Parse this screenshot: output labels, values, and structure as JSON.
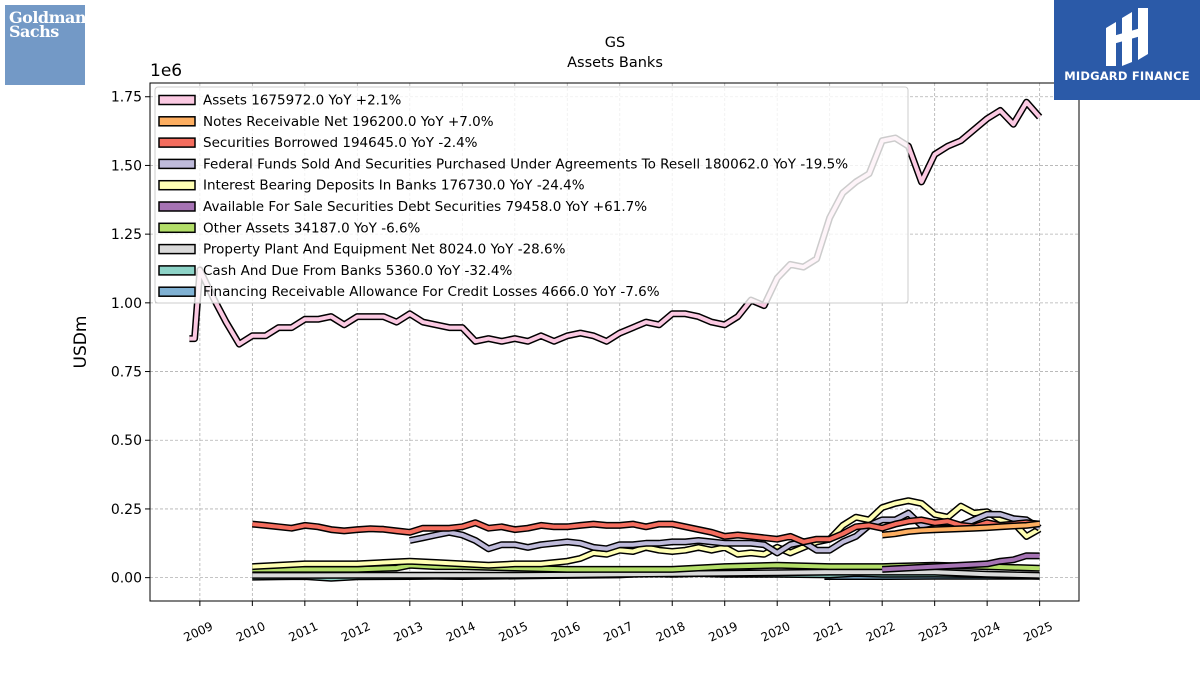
{
  "logos": {
    "left_top": "Goldman",
    "left_bottom": "Sachs",
    "right": "MIDGARD FINANCE"
  },
  "chart_data": {
    "type": "line",
    "title": "GS",
    "subtitle": "Assets Banks",
    "ylabel": "USDm",
    "xlabel": "",
    "y_offset_label": "1e6",
    "ylim": [
      -0.085,
      1.8
    ],
    "xlim": [
      2008.05,
      2025.75
    ],
    "yticks": [
      0.0,
      0.25,
      0.5,
      0.75,
      1.0,
      1.25,
      1.5,
      1.75
    ],
    "ytick_labels": [
      "0.00",
      "0.25",
      "0.50",
      "0.75",
      "1.00",
      "1.25",
      "1.50",
      "1.75"
    ],
    "xticks": [
      2009,
      2010,
      2011,
      2012,
      2013,
      2014,
      2015,
      2016,
      2017,
      2018,
      2019,
      2020,
      2021,
      2022,
      2023,
      2024,
      2025
    ],
    "xtick_labels": [
      "2009",
      "2010",
      "2011",
      "2012",
      "2013",
      "2014",
      "2015",
      "2016",
      "2017",
      "2018",
      "2019",
      "2020",
      "2021",
      "2022",
      "2023",
      "2024",
      "2025"
    ],
    "grid": true,
    "legend_position": "top-left",
    "series": [
      {
        "name": "Assets",
        "legend_label": "Assets  1675972.0 YoY +2.1%",
        "color": "#fbc9e2",
        "x": [
          2008.8,
          2008.9,
          2009.0,
          2009.25,
          2009.5,
          2009.75,
          2010.0,
          2010.25,
          2010.5,
          2010.75,
          2011.0,
          2011.25,
          2011.5,
          2011.75,
          2012.0,
          2012.25,
          2012.5,
          2012.75,
          2013.0,
          2013.25,
          2013.5,
          2013.75,
          2014.0,
          2014.25,
          2014.5,
          2014.75,
          2015.0,
          2015.25,
          2015.5,
          2015.75,
          2016.0,
          2016.25,
          2016.5,
          2016.75,
          2017.0,
          2017.25,
          2017.5,
          2017.75,
          2018.0,
          2018.25,
          2018.5,
          2018.75,
          2019.0,
          2019.25,
          2019.5,
          2019.75,
          2020.0,
          2020.25,
          2020.5,
          2020.75,
          2021.0,
          2021.25,
          2021.5,
          2021.75,
          2022.0,
          2022.25,
          2022.5,
          2022.75,
          2023.0,
          2023.25,
          2023.5,
          2023.75,
          2024.0,
          2024.25,
          2024.5,
          2024.75,
          2025.0
        ],
        "values": [
          0.87,
          0.87,
          1.12,
          1.02,
          0.93,
          0.85,
          0.88,
          0.88,
          0.91,
          0.91,
          0.94,
          0.94,
          0.95,
          0.92,
          0.95,
          0.95,
          0.95,
          0.93,
          0.96,
          0.93,
          0.92,
          0.91,
          0.91,
          0.86,
          0.87,
          0.86,
          0.87,
          0.86,
          0.88,
          0.86,
          0.88,
          0.89,
          0.88,
          0.86,
          0.89,
          0.91,
          0.93,
          0.92,
          0.96,
          0.96,
          0.95,
          0.93,
          0.92,
          0.95,
          1.01,
          0.99,
          1.09,
          1.14,
          1.13,
          1.16,
          1.31,
          1.4,
          1.44,
          1.47,
          1.59,
          1.6,
          1.57,
          1.44,
          1.54,
          1.57,
          1.59,
          1.63,
          1.67,
          1.7,
          1.65,
          1.73,
          1.676
        ]
      },
      {
        "name": "Notes Receivable Net",
        "legend_label": "Notes Receivable Net  196200.0 YoY +7.0%",
        "color": "#fdae61",
        "x": [
          2022.0,
          2022.25,
          2022.5,
          2022.75,
          2023.0,
          2023.25,
          2023.5,
          2023.75,
          2024.0,
          2024.25,
          2024.5,
          2024.75,
          2025.0
        ],
        "values": [
          0.155,
          0.16,
          0.168,
          0.172,
          0.174,
          0.176,
          0.178,
          0.18,
          0.182,
          0.185,
          0.188,
          0.19,
          0.196
        ]
      },
      {
        "name": "Securities Borrowed",
        "legend_label": "Securities Borrowed  194645.0 YoY -2.4%",
        "color": "#f46d5e",
        "x": [
          2010.0,
          2010.25,
          2010.5,
          2010.75,
          2011.0,
          2011.25,
          2011.5,
          2011.75,
          2012.0,
          2012.25,
          2012.5,
          2012.75,
          2013.0,
          2013.25,
          2013.5,
          2013.75,
          2014.0,
          2014.25,
          2014.5,
          2014.75,
          2015.0,
          2015.25,
          2015.5,
          2015.75,
          2016.0,
          2016.25,
          2016.5,
          2016.75,
          2017.0,
          2017.25,
          2017.5,
          2017.75,
          2018.0,
          2018.25,
          2018.5,
          2018.75,
          2019.0,
          2019.25,
          2019.5,
          2019.75,
          2020.0,
          2020.25,
          2020.5,
          2020.75,
          2021.0,
          2021.25,
          2021.5,
          2021.75,
          2022.0,
          2022.25,
          2022.5,
          2022.75,
          2023.0,
          2023.25,
          2023.5,
          2023.75,
          2024.0,
          2024.25,
          2024.5,
          2024.75,
          2025.0
        ],
        "values": [
          0.195,
          0.19,
          0.185,
          0.18,
          0.19,
          0.185,
          0.175,
          0.17,
          0.175,
          0.178,
          0.176,
          0.17,
          0.165,
          0.18,
          0.18,
          0.18,
          0.185,
          0.2,
          0.18,
          0.185,
          0.175,
          0.18,
          0.19,
          0.185,
          0.185,
          0.19,
          0.195,
          0.19,
          0.19,
          0.195,
          0.185,
          0.195,
          0.195,
          0.185,
          0.175,
          0.165,
          0.15,
          0.155,
          0.15,
          0.145,
          0.14,
          0.15,
          0.13,
          0.14,
          0.14,
          0.16,
          0.185,
          0.19,
          0.18,
          0.195,
          0.205,
          0.21,
          0.2,
          0.205,
          0.19,
          0.185,
          0.2,
          0.19,
          0.195,
          0.2,
          0.195
        ]
      },
      {
        "name": "Federal Funds Sold And Securities Purchased Under Agreements To Resell",
        "legend_label": "Federal Funds Sold And Securities Purchased Under Agreements To Resell  180062.0 YoY -19.5%",
        "color": "#bebada",
        "x": [
          2013.0,
          2013.25,
          2013.5,
          2013.75,
          2014.0,
          2014.25,
          2014.5,
          2014.75,
          2015.0,
          2015.25,
          2015.5,
          2015.75,
          2016.0,
          2016.25,
          2016.5,
          2016.75,
          2017.0,
          2017.25,
          2017.5,
          2017.75,
          2018.0,
          2018.25,
          2018.5,
          2018.75,
          2019.0,
          2019.25,
          2019.5,
          2019.75,
          2020.0,
          2020.25,
          2020.5,
          2020.75,
          2021.0,
          2021.25,
          2021.5,
          2021.75,
          2022.0,
          2022.25,
          2022.5,
          2022.75,
          2023.0,
          2023.25,
          2023.5,
          2023.75,
          2024.0,
          2024.25,
          2024.5,
          2024.75,
          2025.0
        ],
        "values": [
          0.135,
          0.145,
          0.155,
          0.165,
          0.155,
          0.135,
          0.105,
          0.12,
          0.12,
          0.11,
          0.12,
          0.125,
          0.13,
          0.125,
          0.11,
          0.105,
          0.12,
          0.12,
          0.125,
          0.125,
          0.13,
          0.13,
          0.135,
          0.13,
          0.125,
          0.125,
          0.125,
          0.12,
          0.09,
          0.12,
          0.13,
          0.1,
          0.1,
          0.13,
          0.15,
          0.19,
          0.21,
          0.21,
          0.235,
          0.19,
          0.2,
          0.2,
          0.19,
          0.21,
          0.23,
          0.23,
          0.215,
          0.21,
          0.18
        ]
      },
      {
        "name": "Interest Bearing Deposits In Banks",
        "legend_label": "Interest Bearing Deposits In Banks  176730.0 YoY -24.4%",
        "color": "#ffffb3",
        "x": [
          2010.0,
          2010.5,
          2011.0,
          2011.5,
          2012.0,
          2012.5,
          2013.0,
          2013.5,
          2014.0,
          2014.5,
          2015.0,
          2015.5,
          2016.0,
          2016.25,
          2016.5,
          2016.75,
          2017.0,
          2017.25,
          2017.5,
          2017.75,
          2018.0,
          2018.25,
          2018.5,
          2018.75,
          2019.0,
          2019.25,
          2019.5,
          2019.75,
          2020.0,
          2020.25,
          2020.5,
          2020.75,
          2021.0,
          2021.25,
          2021.5,
          2021.75,
          2022.0,
          2022.25,
          2022.5,
          2022.75,
          2023.0,
          2023.25,
          2023.5,
          2023.75,
          2024.0,
          2024.25,
          2024.5,
          2024.75,
          2025.0
        ],
        "values": [
          0.04,
          0.045,
          0.05,
          0.05,
          0.05,
          0.055,
          0.06,
          0.055,
          0.05,
          0.045,
          0.05,
          0.05,
          0.06,
          0.07,
          0.09,
          0.085,
          0.1,
          0.095,
          0.11,
          0.1,
          0.095,
          0.1,
          0.11,
          0.1,
          0.11,
          0.085,
          0.09,
          0.085,
          0.11,
          0.09,
          0.11,
          0.13,
          0.14,
          0.19,
          0.22,
          0.21,
          0.255,
          0.27,
          0.28,
          0.27,
          0.23,
          0.22,
          0.26,
          0.235,
          0.24,
          0.21,
          0.2,
          0.15,
          0.177
        ]
      },
      {
        "name": "Available For Sale Securities Debt Securities",
        "legend_label": "Available For Sale Securities Debt Securities  79458.0 YoY +61.7%",
        "color": "#a673b4",
        "x": [
          2022.0,
          2022.5,
          2023.0,
          2023.5,
          2024.0,
          2024.25,
          2024.5,
          2024.75,
          2025.0
        ],
        "values": [
          0.03,
          0.035,
          0.04,
          0.045,
          0.05,
          0.06,
          0.065,
          0.08,
          0.079
        ]
      },
      {
        "name": "Other Assets",
        "legend_label": "Other Assets  34187.0 YoY -6.6%",
        "color": "#b3de69",
        "x": [
          2010.0,
          2011.0,
          2012.0,
          2012.75,
          2013.0,
          2013.5,
          2014.0,
          2015.0,
          2016.0,
          2017.0,
          2018.0,
          2019.0,
          2020.0,
          2021.0,
          2022.0,
          2023.0,
          2024.0,
          2025.0
        ],
        "values": [
          0.03,
          0.03,
          0.03,
          0.035,
          0.045,
          0.04,
          0.04,
          0.035,
          0.03,
          0.03,
          0.03,
          0.04,
          0.045,
          0.04,
          0.04,
          0.045,
          0.04,
          0.034
        ]
      },
      {
        "name": "Property Plant And Equipment Net",
        "legend_label": "Property Plant And Equipment Net  8024.0 YoY -28.6%",
        "color": "#d9d9d9",
        "x": [
          2010.0,
          2011.0,
          2012.0,
          2013.0,
          2014.0,
          2015.0,
          2016.0,
          2017.0,
          2018.0,
          2019.0,
          2020.0,
          2021.0,
          2022.0,
          2023.0,
          2024.0,
          2025.0
        ],
        "values": [
          0.008,
          0.008,
          0.009,
          0.009,
          0.009,
          0.009,
          0.01,
          0.012,
          0.014,
          0.016,
          0.018,
          0.02,
          0.02,
          0.02,
          0.012,
          0.008
        ]
      },
      {
        "name": "Cash And Due From Banks",
        "legend_label": "Cash And Due From Banks  5360.0 YoY -32.4%",
        "color": "#8dd3c7",
        "x": [
          2010.0,
          2010.5,
          2011.0,
          2011.5,
          2012.0,
          2013.0,
          2013.5,
          2014.0,
          2015.0,
          2016.0,
          2017.0,
          2017.5,
          2018.0,
          2018.5,
          2019.0,
          2020.0,
          2021.0,
          2021.5,
          2022.0,
          2023.0,
          2024.0,
          2025.0
        ],
        "values": [
          0.002,
          0.003,
          0.004,
          -0.002,
          0.003,
          0.004,
          0.005,
          0.004,
          0.006,
          0.008,
          0.01,
          0.015,
          0.012,
          0.015,
          0.012,
          0.012,
          0.01,
          0.015,
          0.012,
          0.013,
          0.011,
          0.005
        ]
      },
      {
        "name": "Financing Receivable Allowance For Credit Losses",
        "legend_label": "Financing Receivable Allowance For Credit Losses  4666.0 YoY -7.6%",
        "color": "#80b1d3",
        "x": [
          2020.9,
          2021.0,
          2022.0,
          2023.0,
          2024.0,
          2025.0
        ],
        "values": [
          0.004,
          0.004,
          0.004,
          0.005,
          0.005,
          0.005
        ]
      }
    ]
  }
}
